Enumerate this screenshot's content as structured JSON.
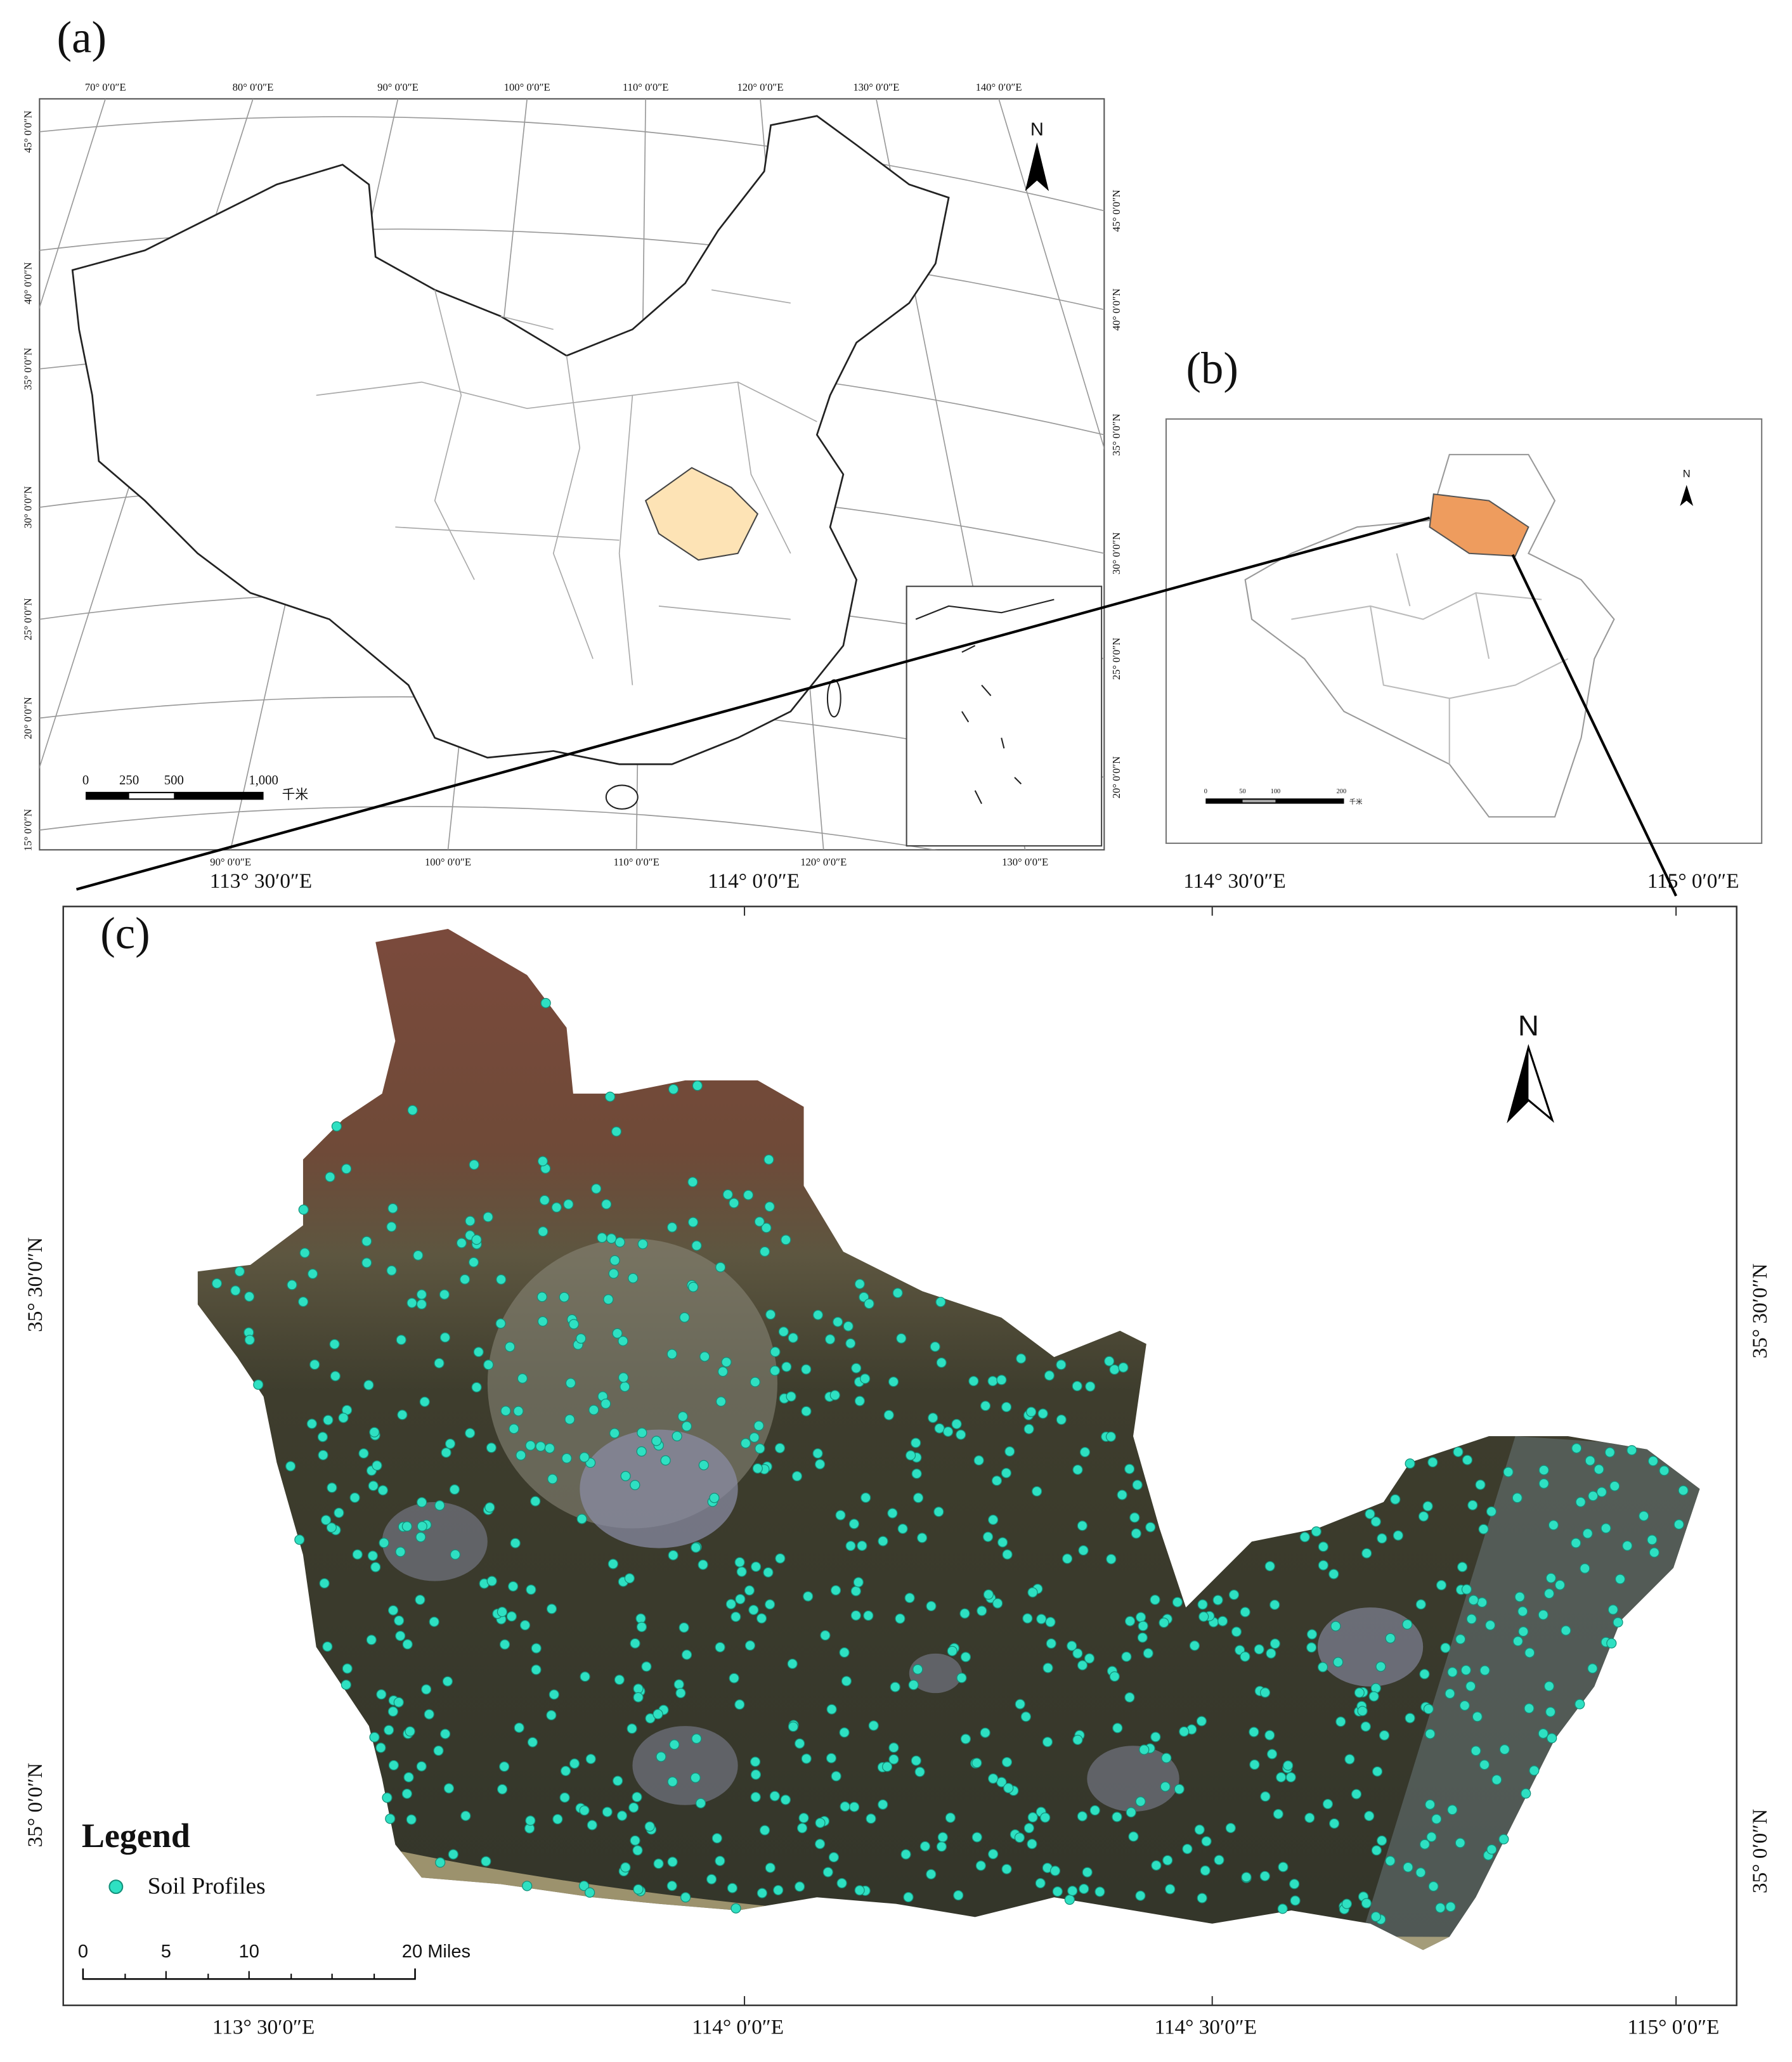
{
  "figure": {
    "panel_a": {
      "label": "(a)",
      "north": "N",
      "lon_top": [
        "70° 0′0″E",
        "80° 0′0″E",
        "90° 0′0″E",
        "100° 0′0″E",
        "110° 0′0″E",
        "120° 0′0″E",
        "130° 0′0″E",
        "140° 0′0″E"
      ],
      "lon_bottom": [
        "90° 0′0″E",
        "100° 0′0″E",
        "110° 0′0″E",
        "120° 0′0″E",
        "130° 0′0″E"
      ],
      "lat_left": [
        "45° 0′0″N",
        "40° 0′0″N",
        "35° 0′0″N",
        "30° 0′0″N",
        "25° 0′0″N",
        "20° 0′0″N",
        "15° 0′0″N"
      ],
      "lat_right": [
        "45° 0′0″N",
        "40° 0′0″N",
        "35° 0′0″N",
        "30° 0′0″N",
        "25° 0′0″N",
        "20° 0′0″N"
      ],
      "scale_labels": [
        "0",
        "250",
        "500",
        "1,000",
        "千米"
      ]
    },
    "panel_b": {
      "label": "(b)",
      "north": "N",
      "scale_labels": [
        "0",
        "50",
        "100",
        "200",
        "千米"
      ]
    },
    "panel_c": {
      "label": "(c)",
      "north": "N",
      "lon_top": [
        "113° 30′0″E",
        "114° 0′0″E",
        "114° 30′0″E",
        "115° 0′0″E"
      ],
      "lon_bottom": [
        "113° 30′0″E",
        "114° 0′0″E",
        "114° 30′0″E",
        "115° 0′0″E"
      ],
      "lat_left": [
        "35° 30′0″N",
        "35° 0′0″N"
      ],
      "lat_right": [
        "35° 30′0″N",
        "35° 0′0″N"
      ],
      "legend_title": "Legend",
      "legend_item": "Soil Profiles",
      "scale_labels": [
        "0",
        "5",
        "10",
        "20 Miles"
      ]
    }
  }
}
